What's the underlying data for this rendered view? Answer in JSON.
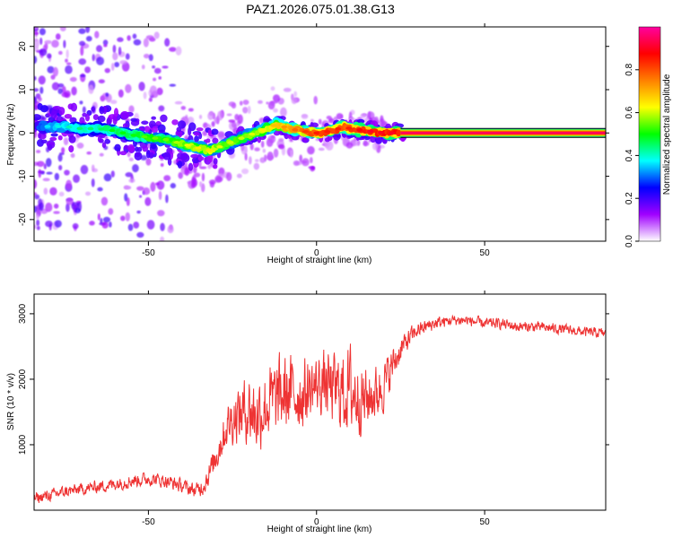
{
  "title": "PAZ1.2026.075.01.38.G13",
  "chart_data": [
    {
      "type": "heatmap",
      "title": "PAZ1.2026.075.01.38.G13",
      "xlabel": "Height of straight line (km)",
      "ylabel": "Frequency (Hz)",
      "xlim": [
        -84,
        86
      ],
      "ylim": [
        -25,
        24.5
      ],
      "xticks": [
        -50,
        0,
        50
      ],
      "yticks": [
        -20,
        -10,
        0,
        10,
        20
      ],
      "xtick_labels": [
        "-50",
        "0",
        "50"
      ],
      "ytick_labels": [
        "-20",
        "-10",
        "0",
        "10",
        "20"
      ],
      "ridge": {
        "x": [
          -82,
          -75,
          -70,
          -65,
          -60,
          -55,
          -50,
          -45,
          -40,
          -35,
          -32,
          -28,
          -25,
          -20,
          -15,
          -12,
          -8,
          -5,
          0,
          5,
          8,
          10,
          15,
          20,
          25
        ],
        "frequency": [
          1.5,
          1.5,
          1.0,
          1.0,
          0.5,
          -0.5,
          -1.0,
          -1.5,
          -2.5,
          -3.5,
          -4.0,
          -3.0,
          -2.0,
          -0.5,
          1.0,
          2.0,
          1.0,
          0.5,
          0.0,
          0.5,
          1.5,
          1.0,
          0.5,
          0.0,
          0.0
        ],
        "normalized_amplitude": [
          0.3,
          0.35,
          0.4,
          0.4,
          0.45,
          0.45,
          0.5,
          0.5,
          0.55,
          0.6,
          0.6,
          0.55,
          0.55,
          0.55,
          0.6,
          0.65,
          0.7,
          0.75,
          0.8,
          0.8,
          0.8,
          0.8,
          0.85,
          0.85,
          0.85
        ]
      },
      "steady_band": {
        "x_start": 25,
        "x_end": 86,
        "frequency": 0.0,
        "normalized_amplitude": 0.95
      },
      "colorbar": {
        "label": "Normalized spectral amplitude",
        "ticks": [
          0.0,
          0.2,
          0.4,
          0.6,
          0.8
        ],
        "tick_labels": [
          "0.0",
          "0.2",
          "0.4",
          "0.6",
          "0.8"
        ],
        "range": [
          0,
          1
        ],
        "colors": [
          "#ffffff",
          "#a000ff",
          "#0000ff",
          "#00ffff",
          "#00ff00",
          "#ffff00",
          "#ff8000",
          "#ff0000",
          "#ff00a0"
        ]
      }
    },
    {
      "type": "line",
      "xlabel": "Height of straight line (km)",
      "ylabel": "SNR (10 * v/v)",
      "xlim": [
        -84,
        86
      ],
      "ylim": [
        0,
        3300
      ],
      "xticks": [
        -50,
        0,
        50
      ],
      "yticks": [
        1000,
        2000,
        3000
      ],
      "xtick_labels": [
        "-50",
        "0",
        "50"
      ],
      "ytick_labels": [
        "1000",
        "2000",
        "3000"
      ],
      "series": [
        {
          "name": "SNR",
          "color": "#ee3333",
          "x": [
            -84,
            -80,
            -75,
            -70,
            -65,
            -60,
            -55,
            -50,
            -45,
            -40,
            -36,
            -34,
            -32,
            -30,
            -28,
            -26,
            -24,
            -22,
            -20,
            -18,
            -15,
            -12,
            -10,
            -8,
            -5,
            -2,
            0,
            2,
            5,
            8,
            10,
            12,
            15,
            18,
            20,
            22,
            25,
            28,
            30,
            35,
            40,
            45,
            50,
            55,
            60,
            65,
            70,
            75,
            80,
            86
          ],
          "y": [
            180,
            220,
            280,
            320,
            360,
            400,
            450,
            480,
            450,
            370,
            300,
            350,
            550,
            800,
            1100,
            1350,
            1450,
            1500,
            1550,
            1450,
            1600,
            1700,
            1750,
            1800,
            1750,
            1850,
            1900,
            1950,
            1850,
            1800,
            1850,
            1750,
            1700,
            1800,
            1900,
            2150,
            2450,
            2650,
            2750,
            2850,
            2900,
            2900,
            2850,
            2850,
            2800,
            2800,
            2780,
            2750,
            2720,
            2700
          ]
        }
      ],
      "noise": {
        "x": [
          -84,
          -70,
          -55,
          -40,
          -35,
          -30,
          -20,
          -10,
          0,
          5,
          10,
          15,
          20,
          25,
          30,
          40,
          86
        ],
        "amplitude": [
          120,
          120,
          140,
          140,
          150,
          300,
          700,
          800,
          600,
          700,
          900,
          600,
          500,
          250,
          150,
          110,
          100
        ]
      }
    }
  ]
}
